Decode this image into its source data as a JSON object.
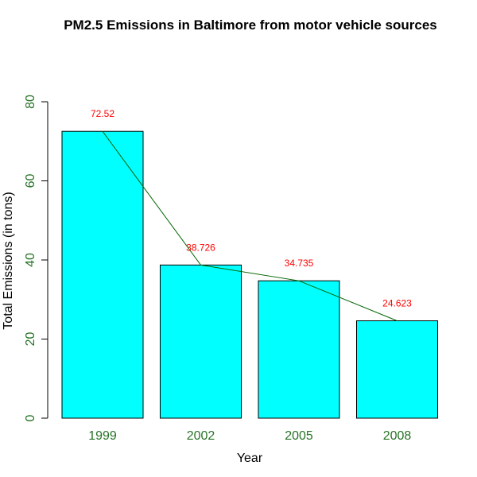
{
  "chart_data": {
    "type": "bar",
    "title": "PM2.5 Emissions in Baltimore from motor vehicle sources",
    "xlabel": "Year",
    "ylabel": "Total Emissions (in tons)",
    "categories": [
      "1999",
      "2002",
      "2005",
      "2008"
    ],
    "values": [
      72.52,
      38.726,
      34.735,
      24.623
    ],
    "data_labels": [
      "72.52",
      "38.726",
      "34.735",
      "24.623"
    ],
    "yticks": [
      0,
      20,
      40,
      60,
      80
    ],
    "ylim": [
      0,
      80
    ],
    "overlay": "line connecting bar tops",
    "grid": false,
    "legend": "none",
    "colors": {
      "bar_fill": "#00FFFF",
      "bar_stroke": "#000000",
      "line": "#006400",
      "tick_labels": "#267326",
      "data_labels": "#FF0000",
      "axis": "#000000"
    }
  }
}
